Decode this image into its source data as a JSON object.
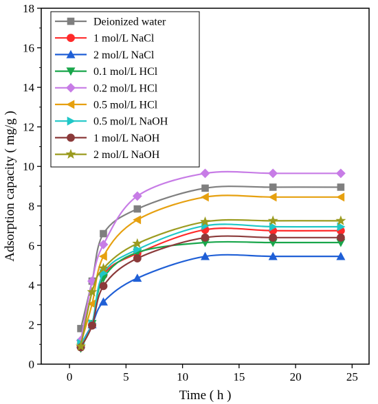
{
  "chart_data": {
    "type": "line",
    "title": "",
    "xlabel": "Time ( h )",
    "ylabel": "Adsorption capacity ( mg/g )",
    "xlim": [
      -2.5,
      26.5
    ],
    "ylim": [
      0,
      18
    ],
    "xticks": [
      0,
      5,
      10,
      15,
      20,
      25
    ],
    "yticks": [
      0,
      2,
      4,
      6,
      8,
      10,
      12,
      14,
      16,
      18
    ],
    "grid": false,
    "legend_position": "top-left",
    "x": [
      1,
      2,
      3,
      6,
      12,
      18,
      24
    ],
    "series": [
      {
        "name": "Deionized water",
        "color": "#7f7f7f",
        "marker": "square",
        "values": [
          1.8,
          4.2,
          6.6,
          7.85,
          8.9,
          8.95,
          8.95
        ]
      },
      {
        "name": "1 mol/L NaCl",
        "color": "#ff2a2a",
        "marker": "circle",
        "values": [
          0.9,
          2.0,
          4.5,
          5.6,
          6.8,
          6.75,
          6.75
        ]
      },
      {
        "name": "2 mol/L NaCl",
        "color": "#1f5fd6",
        "marker": "triangle-up",
        "values": [
          1.0,
          2.0,
          3.15,
          4.35,
          5.45,
          5.45,
          5.45
        ]
      },
      {
        "name": "0.1 mol/L HCl",
        "color": "#19a64b",
        "marker": "triangle-down",
        "values": [
          0.8,
          2.05,
          4.35,
          5.65,
          6.15,
          6.15,
          6.15
        ]
      },
      {
        "name": "0.2 mol/L HCl",
        "color": "#c77ce6",
        "marker": "diamond",
        "values": [
          1.2,
          4.2,
          6.05,
          8.5,
          9.65,
          9.65,
          9.65
        ]
      },
      {
        "name": "0.5 mol/L HCl",
        "color": "#e6a00f",
        "marker": "triangle-left",
        "values": [
          1.05,
          3.05,
          5.45,
          7.3,
          8.45,
          8.45,
          8.45
        ]
      },
      {
        "name": "0.5 mol/L NaOH",
        "color": "#1fc7c7",
        "marker": "triangle-right",
        "values": [
          1.05,
          2.05,
          4.6,
          5.8,
          7.0,
          6.95,
          6.95
        ]
      },
      {
        "name": "1 mol/L NaOH",
        "color": "#8b3a3a",
        "marker": "circle",
        "values": [
          0.85,
          1.95,
          3.95,
          5.35,
          6.4,
          6.4,
          6.4
        ]
      },
      {
        "name": "2 mol/L NaOH",
        "color": "#9b9b1f",
        "marker": "star",
        "values": [
          0.9,
          3.65,
          4.85,
          6.1,
          7.2,
          7.25,
          7.25
        ]
      }
    ]
  }
}
